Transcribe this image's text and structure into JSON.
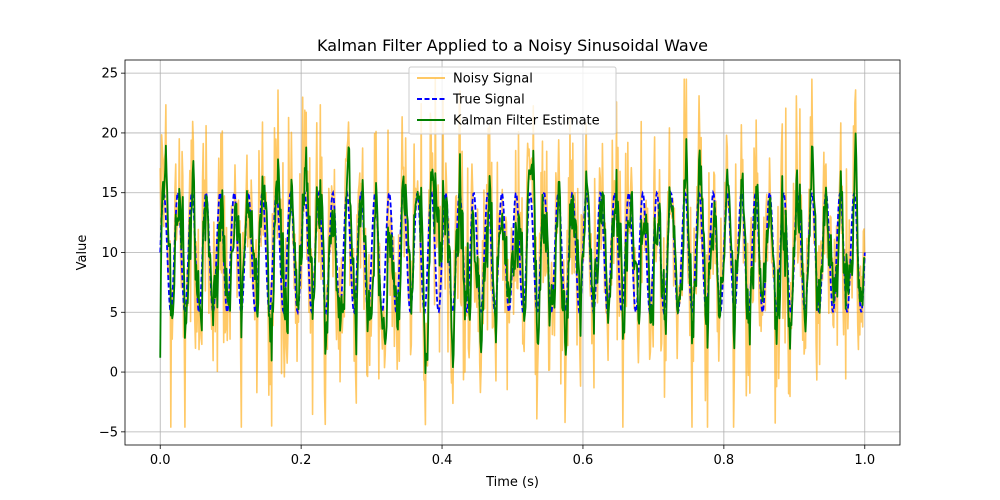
{
  "chart_data": {
    "type": "line",
    "title": "Kalman Filter Applied to a Noisy Sinusoidal Wave",
    "xlabel": "Time (s)",
    "ylabel": "Value",
    "xlim": [
      -0.05,
      1.05
    ],
    "ylim": [
      -6.1,
      26.1
    ],
    "xticks": [
      0.0,
      0.2,
      0.4,
      0.6,
      0.8,
      1.0
    ],
    "xtick_labels": [
      "0.0",
      "0.2",
      "0.4",
      "0.6",
      "0.8",
      "1.0"
    ],
    "yticks": [
      -5,
      0,
      5,
      10,
      15,
      20,
      25
    ],
    "ytick_labels": [
      "−5",
      "0",
      "5",
      "10",
      "15",
      "20",
      "25"
    ],
    "grid": true,
    "legend_position": "top-center",
    "series": [
      {
        "name": "Noisy Signal",
        "color": "#ffa500",
        "style": "solid",
        "opacity": 0.6,
        "description": "sinusoid (amplitude 5, offset 10, 50 Hz) plus Gaussian noise (std ~5), sampled at 1000 points from 0 to 1 s",
        "range": [
          -4.6,
          24.5
        ]
      },
      {
        "name": "True Signal",
        "color": "#0000ff",
        "style": "dashed",
        "description": "10 + 5*sin(2*pi*50*t), sampled at 1000 points from 0 to 1 s",
        "range": [
          5,
          15
        ]
      },
      {
        "name": "Kalman Filter Estimate",
        "color": "#008000",
        "style": "solid",
        "description": "Kalman filtered estimate starting near 1.2 and tracking the sinusoid, peaks up to ~16.5",
        "range": [
          1.2,
          16.5
        ]
      }
    ]
  }
}
